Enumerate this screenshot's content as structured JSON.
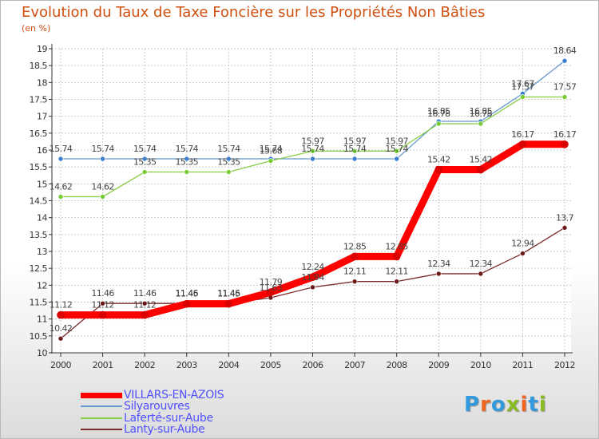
{
  "title": "Evolution du Taux de Taxe Foncière sur les Propriétés Non Bâties",
  "subtitle": "(en %)",
  "logo": "Proxiti",
  "colors": {
    "title": "#d05010",
    "legend_text": "#5050ff",
    "grid": "#cccccc",
    "axis": "#333333"
  },
  "chart_data": {
    "type": "line",
    "title": "Evolution du Taux de Taxe Foncière sur les Propriétés Non Bâties",
    "ylabel": "(en %)",
    "xlabel": "",
    "x": [
      "2000",
      "2001",
      "2002",
      "2003",
      "2004",
      "2005",
      "2006",
      "2007",
      "2008",
      "2009",
      "2010",
      "2011",
      "2012"
    ],
    "ylim": [
      10,
      19
    ],
    "yticks": [
      "10",
      "10.5",
      "11",
      "11.5",
      "12",
      "12.5",
      "13",
      "13.5",
      "14",
      "14.5",
      "15",
      "15.5",
      "16",
      "16.5",
      "17",
      "17.5",
      "18",
      "18.5",
      "19"
    ],
    "grid": true,
    "series": [
      {
        "name": "VILLARS-EN-AZOIS",
        "color": "#ff0000",
        "marker": "#dd0000",
        "values": [
          11.12,
          11.12,
          11.12,
          11.45,
          11.45,
          11.79,
          12.24,
          12.85,
          12.85,
          15.42,
          15.42,
          16.17,
          16.17
        ],
        "labels": [
          "11.12",
          "11.12",
          "11.12",
          "11.45",
          "11.45",
          "11.79",
          "12.24",
          "12.85",
          "12.85",
          "15.42",
          "15.42",
          "16.17",
          "16.17"
        ]
      },
      {
        "name": "Silyarouvres",
        "color": "#6699cc",
        "marker": "#3a7fd0",
        "values": [
          15.74,
          15.74,
          15.74,
          15.74,
          15.74,
          15.74,
          15.74,
          15.74,
          15.74,
          16.85,
          16.85,
          17.67,
          18.64
        ],
        "labels": [
          "15.74",
          "15.74",
          "15.74",
          "15.74",
          "15.74",
          "15.74",
          "15.74",
          "15.74",
          "15.74",
          "16.85",
          "16.85",
          "17.67",
          "18.64"
        ]
      },
      {
        "name": "Laferté-sur-Aube",
        "color": "#88cc44",
        "marker": "#77cc33",
        "values": [
          14.62,
          14.62,
          15.35,
          15.35,
          15.35,
          15.68,
          15.97,
          15.97,
          15.97,
          16.78,
          16.78,
          17.57,
          17.57
        ],
        "labels": [
          "14.62",
          "14.62",
          "15.35",
          "15.35",
          "15.35",
          "15.68",
          "15.97",
          "15.97",
          "15.97",
          "16.78",
          "16.78",
          "17.57",
          "17.57"
        ]
      },
      {
        "name": "Lanty-sur-Aube",
        "color": "#7a2a2a",
        "marker": "#6b1a1a",
        "values": [
          10.42,
          11.46,
          11.46,
          11.46,
          11.46,
          11.63,
          11.94,
          12.11,
          12.11,
          12.34,
          12.34,
          12.94,
          13.7
        ],
        "labels": [
          "10.42",
          "11.46",
          "11.46",
          "11.46",
          "11.46",
          "11.63",
          "11.94",
          "12.11",
          "12.11",
          "12.34",
          "12.34",
          "12.94",
          "13.7"
        ]
      }
    ],
    "legend": "bottom-left"
  }
}
